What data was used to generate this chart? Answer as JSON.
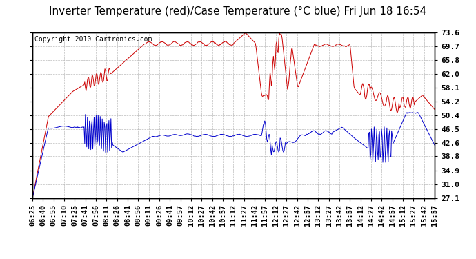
{
  "title": "Inverter Temperature (red)/Case Temperature (°C blue) Fri Jun 18 16:54",
  "copyright": "Copyright 2010 Cartronics.com",
  "y_ticks": [
    27.1,
    31.0,
    34.9,
    38.8,
    42.6,
    46.5,
    50.4,
    54.2,
    58.1,
    62.0,
    65.8,
    69.7,
    73.6
  ],
  "x_tick_labels": [
    "06:25",
    "06:40",
    "06:55",
    "07:10",
    "07:25",
    "07:41",
    "07:56",
    "08:11",
    "08:26",
    "08:41",
    "08:56",
    "09:11",
    "09:26",
    "09:41",
    "09:57",
    "10:12",
    "10:27",
    "10:42",
    "10:57",
    "11:12",
    "11:27",
    "11:42",
    "11:57",
    "12:12",
    "12:27",
    "12:42",
    "12:57",
    "13:12",
    "13:27",
    "13:42",
    "13:57",
    "14:12",
    "14:27",
    "14:42",
    "14:57",
    "15:12",
    "15:27",
    "15:42",
    "15:57"
  ],
  "bg_color": "#ffffff",
  "plot_bg_color": "#ffffff",
  "grid_color": "#bbbbbb",
  "red_color": "#cc0000",
  "blue_color": "#0000cc",
  "title_fontsize": 11,
  "copyright_fontsize": 7,
  "tick_fontsize": 8,
  "ymin": 27.1,
  "ymax": 73.6
}
